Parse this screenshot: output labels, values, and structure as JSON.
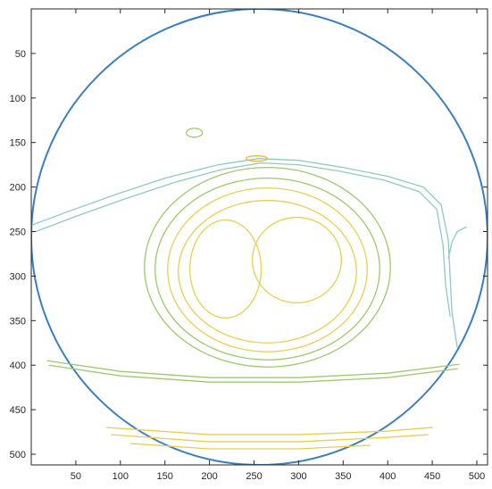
{
  "chart_data": {
    "type": "contour",
    "title": "",
    "xlabel": "",
    "ylabel": "",
    "xlim": [
      0,
      512
    ],
    "ylim": [
      512,
      0
    ],
    "y_reversed": true,
    "x_ticks": [
      50,
      100,
      150,
      200,
      250,
      300,
      350,
      400,
      450,
      500
    ],
    "y_ticks": [
      50,
      100,
      150,
      200,
      250,
      300,
      350,
      400,
      450,
      500
    ],
    "x_tick_labels": [
      "50",
      "100",
      "150",
      "200",
      "250",
      "300",
      "350",
      "400",
      "450",
      "500"
    ],
    "y_tick_labels": [
      "50",
      "100",
      "150",
      "200",
      "250",
      "300",
      "350",
      "400",
      "450",
      "500"
    ],
    "grid": false,
    "colors": {
      "outer_circle": "#3a7fc0",
      "level_low": "#8fc9c4",
      "level_mid": "#9ec96b",
      "level_high": "#e9cf4e",
      "level_top": "#f0b23a"
    },
    "contours": [
      {
        "level": "outer",
        "shape": "circle",
        "cx": 256,
        "cy": 256,
        "r": 256
      },
      {
        "level": "low",
        "shape": "polyline",
        "points": [
          [
            0,
            243
          ],
          [
            40,
            228
          ],
          [
            90,
            210
          ],
          [
            150,
            190
          ],
          [
            210,
            175
          ],
          [
            255,
            168
          ],
          [
            300,
            170
          ],
          [
            350,
            178
          ],
          [
            400,
            188
          ],
          [
            440,
            200
          ],
          [
            460,
            220
          ],
          [
            468,
            260
          ],
          [
            470,
            300
          ],
          [
            472,
            340
          ],
          [
            478,
            380
          ]
        ]
      },
      {
        "level": "low",
        "shape": "polyline",
        "points": [
          [
            5,
            250
          ],
          [
            50,
            233
          ],
          [
            100,
            215
          ],
          [
            160,
            195
          ],
          [
            215,
            180
          ],
          [
            258,
            173
          ],
          [
            300,
            175
          ],
          [
            345,
            182
          ],
          [
            395,
            192
          ],
          [
            435,
            205
          ],
          [
            455,
            225
          ],
          [
            462,
            265
          ],
          [
            465,
            310
          ],
          [
            470,
            345
          ]
        ]
      },
      {
        "level": "low",
        "shape": "polyline",
        "points": [
          [
            468,
            280
          ],
          [
            472,
            262
          ],
          [
            478,
            250
          ],
          [
            488,
            245
          ]
        ]
      },
      {
        "level": "mid",
        "shape": "ellipse",
        "cx": 265,
        "cy": 290,
        "rx": 138,
        "ry": 112
      },
      {
        "level": "mid",
        "shape": "ellipse",
        "cx": 265,
        "cy": 292,
        "rx": 126,
        "ry": 102
      },
      {
        "level": "high",
        "shape": "ellipse",
        "cx": 265,
        "cy": 293,
        "rx": 112,
        "ry": 92
      },
      {
        "level": "high",
        "shape": "ellipse",
        "cx": 265,
        "cy": 295,
        "rx": 100,
        "ry": 80
      },
      {
        "level": "high",
        "shape": "ellipse",
        "cx": 298,
        "cy": 282,
        "rx": 50,
        "ry": 48
      },
      {
        "level": "high",
        "shape": "ellipse",
        "cx": 218,
        "cy": 292,
        "rx": 40,
        "ry": 55
      },
      {
        "level": "mid",
        "shape": "ellipse",
        "cx": 183,
        "cy": 139,
        "rx": 9,
        "ry": 5
      },
      {
        "level": "top",
        "shape": "ellipse",
        "cx": 253,
        "cy": 168,
        "rx": 12,
        "ry": 3
      },
      {
        "level": "mid",
        "shape": "polyline",
        "points": [
          [
            18,
            395
          ],
          [
            100,
            407
          ],
          [
            200,
            414
          ],
          [
            300,
            414
          ],
          [
            400,
            409
          ],
          [
            480,
            399
          ]
        ]
      },
      {
        "level": "mid",
        "shape": "polyline",
        "points": [
          [
            20,
            400
          ],
          [
            100,
            412
          ],
          [
            200,
            419
          ],
          [
            300,
            419
          ],
          [
            400,
            414
          ],
          [
            478,
            404
          ]
        ]
      },
      {
        "level": "high",
        "shape": "polyline",
        "points": [
          [
            85,
            470
          ],
          [
            200,
            478
          ],
          [
            300,
            478
          ],
          [
            400,
            474
          ],
          [
            450,
            470
          ]
        ]
      },
      {
        "level": "high",
        "shape": "polyline",
        "points": [
          [
            90,
            478
          ],
          [
            200,
            486
          ],
          [
            300,
            486
          ],
          [
            400,
            481
          ],
          [
            445,
            478
          ]
        ]
      },
      {
        "level": "high",
        "shape": "polyline",
        "points": [
          [
            112,
            488
          ],
          [
            200,
            494
          ],
          [
            300,
            494
          ],
          [
            380,
            490
          ]
        ]
      }
    ]
  }
}
